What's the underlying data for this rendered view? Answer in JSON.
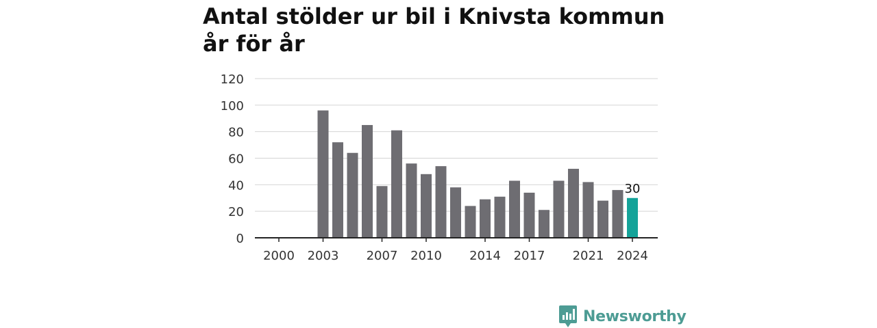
{
  "title": "Antal stölder ur bil i Knivsta kommun år för år",
  "brand": {
    "name": "Newsworthy",
    "color": "#4d9c94"
  },
  "chart_data": {
    "type": "bar",
    "title": "Antal stölder ur bil i Knivsta kommun år för år",
    "xlabel": "",
    "ylabel": "",
    "ylim": [
      0,
      120
    ],
    "yticks": [
      0,
      20,
      40,
      60,
      80,
      100,
      120
    ],
    "xticks": [
      "2000",
      "2003",
      "2007",
      "2010",
      "2014",
      "2017",
      "2021",
      "2024"
    ],
    "grid": true,
    "categories": [
      "2000",
      "2001",
      "2002",
      "2003",
      "2004",
      "2005",
      "2006",
      "2007",
      "2008",
      "2009",
      "2010",
      "2011",
      "2012",
      "2013",
      "2014",
      "2015",
      "2016",
      "2017",
      "2018",
      "2019",
      "2020",
      "2021",
      "2022",
      "2023",
      "2024"
    ],
    "values": [
      null,
      null,
      null,
      96,
      72,
      64,
      85,
      39,
      81,
      56,
      48,
      54,
      38,
      24,
      29,
      31,
      43,
      34,
      21,
      43,
      52,
      42,
      28,
      36,
      30
    ],
    "bar_color": "#6e6d72",
    "highlight_color": "#14a399",
    "highlight_label": "30"
  }
}
